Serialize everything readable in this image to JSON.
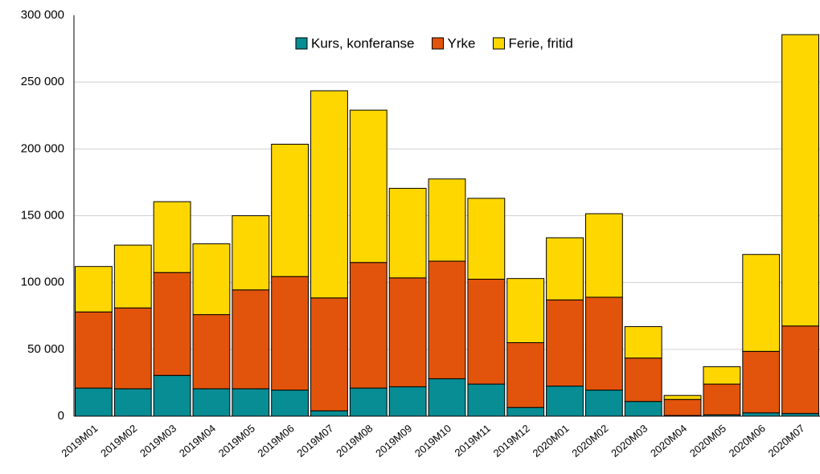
{
  "chart_data": {
    "type": "stacked_bar",
    "categories": [
      "2019M01",
      "2019M02",
      "2019M03",
      "2019M04",
      "2019M05",
      "2019M06",
      "2019M07",
      "2019M08",
      "2019M09",
      "2019M10",
      "2019M11",
      "2019M12",
      "2020M01",
      "2020M02",
      "2020M03",
      "2020M04",
      "2020M05",
      "2020M06",
      "2020M07"
    ],
    "series": [
      {
        "name": "Kurs, konferanse",
        "color": "#078d93",
        "values": [
          21000,
          20500,
          30500,
          20500,
          20500,
          19500,
          4000,
          21000,
          22000,
          28000,
          24000,
          6500,
          22500,
          19500,
          11000,
          500,
          1000,
          2500,
          2000
        ]
      },
      {
        "name": "Yrke",
        "color": "#e2540b",
        "values": [
          57000,
          60500,
          77000,
          55500,
          74000,
          85000,
          84500,
          94000,
          81500,
          88000,
          78500,
          48500,
          64500,
          69500,
          32500,
          12000,
          23000,
          46000,
          65500
        ]
      },
      {
        "name": "Ferie, fritid",
        "color": "#ffd700",
        "values": [
          34000,
          47000,
          53000,
          53000,
          55500,
          99000,
          155000,
          114000,
          67000,
          61500,
          60500,
          48000,
          46500,
          62500,
          23500,
          3000,
          13000,
          72500,
          218000
        ]
      }
    ],
    "ylim": [
      0,
      300000
    ],
    "yticks": [
      0,
      {
        "value": 50000,
        "label": "50 000"
      },
      {
        "value": 100000,
        "label": "100 000"
      },
      {
        "value": 150000,
        "label": "150 000"
      },
      {
        "value": 200000,
        "label": "200 000"
      },
      {
        "value": 250000,
        "label": "250 000"
      },
      {
        "value": 300000,
        "label": "300 000"
      }
    ],
    "grid": true,
    "legend": "top"
  }
}
